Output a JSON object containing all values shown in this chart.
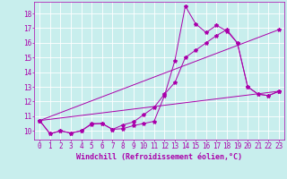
{
  "background_color": "#c8eeed",
  "line_color": "#aa00aa",
  "marker": "*",
  "marker_size": 3,
  "xlabel": "Windchill (Refroidissement éolien,°C)",
  "xlabel_fontsize": 6.0,
  "ylabel_ticks": [
    10,
    11,
    12,
    13,
    14,
    15,
    16,
    17,
    18
  ],
  "xlim": [
    -0.5,
    23.5
  ],
  "ylim": [
    9.4,
    18.8
  ],
  "grid_color": "#ffffff",
  "tick_color": "#aa00aa",
  "tick_fontsize": 5.5,
  "line1_x": [
    0,
    1,
    2,
    3,
    4,
    5,
    6,
    7,
    8,
    9,
    10,
    11,
    12,
    13,
    14,
    15,
    16,
    17,
    18,
    19,
    20,
    21,
    22,
    23
  ],
  "line1_y": [
    10.7,
    9.8,
    10.0,
    9.85,
    10.0,
    10.5,
    10.5,
    10.1,
    10.15,
    10.35,
    10.5,
    10.65,
    12.4,
    14.8,
    18.5,
    17.3,
    16.7,
    17.2,
    16.8,
    16.0,
    13.0,
    12.5,
    12.4,
    12.7
  ],
  "line2_x": [
    0,
    1,
    2,
    3,
    4,
    5,
    6,
    7,
    8,
    9,
    10,
    11,
    12,
    13,
    14,
    15,
    16,
    17,
    18,
    19,
    20,
    21,
    22,
    23
  ],
  "line2_y": [
    10.7,
    9.8,
    10.0,
    9.85,
    10.0,
    10.45,
    10.5,
    10.1,
    10.4,
    10.6,
    11.1,
    11.6,
    12.5,
    13.3,
    15.0,
    15.5,
    16.0,
    16.5,
    16.9,
    16.0,
    13.0,
    12.5,
    12.4,
    12.7
  ],
  "line3_x": [
    0,
    23
  ],
  "line3_y": [
    10.7,
    12.7
  ],
  "line4_x": [
    0,
    23
  ],
  "line4_y": [
    10.7,
    16.9
  ]
}
